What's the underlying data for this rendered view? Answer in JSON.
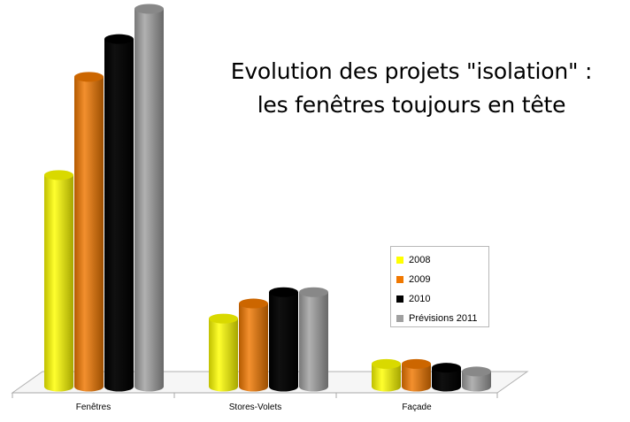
{
  "chart_data": {
    "type": "bar",
    "title_lines": [
      "Evolution des projets \"isolation\" :",
      "les fenêtres toujours en tête"
    ],
    "categories": [
      "Fenêtres",
      "Stores-Volets",
      "Façade"
    ],
    "series": [
      {
        "name": "2008",
        "color": "#ffff00",
        "values": [
          56,
          18,
          6
        ]
      },
      {
        "name": "2009",
        "color": "#f07800",
        "values": [
          82,
          22,
          6
        ]
      },
      {
        "name": "2010",
        "color": "#000000",
        "values": [
          92,
          25,
          5
        ]
      },
      {
        "name": "Prévisions 2011",
        "color": "#a0a0a0",
        "values": [
          100,
          25,
          4
        ]
      }
    ],
    "ylim": [
      0,
      100
    ],
    "legend_position": "right",
    "grid": false
  }
}
